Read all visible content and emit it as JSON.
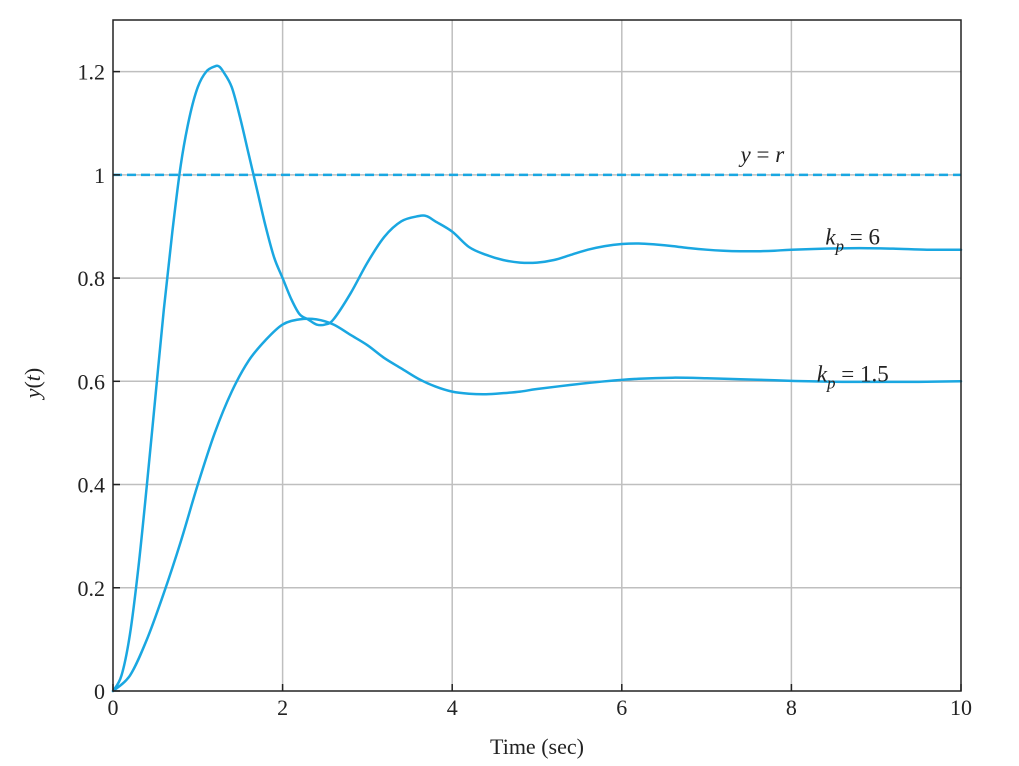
{
  "chart_data": {
    "type": "line",
    "title": "",
    "xlabel": "Time (sec)",
    "ylabel": "y(t)",
    "xlim": [
      0,
      10
    ],
    "ylim": [
      0,
      1.3
    ],
    "x_ticks": [
      0,
      2,
      4,
      6,
      8,
      10
    ],
    "x_tick_labels": [
      "0",
      "2",
      "4",
      "6",
      "8",
      "10"
    ],
    "y_ticks": [
      0,
      0.2,
      0.4,
      0.6,
      0.8,
      1,
      1.2
    ],
    "y_tick_labels": [
      "0",
      "0.2",
      "0.4",
      "0.6",
      "0.8",
      "1",
      "1.2"
    ],
    "grid": true,
    "colors": {
      "curve": "#1aa7e1",
      "grid": "#bfbfbf",
      "frame": "#222222"
    },
    "series": [
      {
        "name": "k_p = 6",
        "style": "solid",
        "x": [
          0,
          0.1,
          0.2,
          0.3,
          0.4,
          0.5,
          0.6,
          0.7,
          0.8,
          0.9,
          1.0,
          1.1,
          1.2,
          1.25,
          1.3,
          1.4,
          1.5,
          1.6,
          1.7,
          1.8,
          1.9,
          2.0,
          2.1,
          2.2,
          2.3,
          2.4,
          2.5,
          2.6,
          2.8,
          3.0,
          3.2,
          3.4,
          3.6,
          3.7,
          3.8,
          4.0,
          4.2,
          4.4,
          4.6,
          4.8,
          5.0,
          5.2,
          5.4,
          5.6,
          5.8,
          6.0,
          6.2,
          6.4,
          6.6,
          6.8,
          7.0,
          7.2,
          7.4,
          7.6,
          7.8,
          8.0,
          8.4,
          8.8,
          9.2,
          9.6,
          10.0
        ],
        "y": [
          0,
          0.03,
          0.11,
          0.24,
          0.4,
          0.57,
          0.74,
          0.89,
          1.02,
          1.11,
          1.17,
          1.2,
          1.21,
          1.21,
          1.2,
          1.17,
          1.11,
          1.04,
          0.97,
          0.9,
          0.84,
          0.8,
          0.76,
          0.73,
          0.72,
          0.71,
          0.71,
          0.72,
          0.77,
          0.83,
          0.88,
          0.91,
          0.92,
          0.92,
          0.91,
          0.89,
          0.86,
          0.845,
          0.835,
          0.83,
          0.83,
          0.835,
          0.845,
          0.855,
          0.862,
          0.866,
          0.867,
          0.865,
          0.862,
          0.858,
          0.855,
          0.853,
          0.852,
          0.852,
          0.853,
          0.855,
          0.857,
          0.858,
          0.857,
          0.855,
          0.855
        ],
        "label": {
          "k": "k",
          "sub": "p",
          "rest": " = 6",
          "x": 8.4,
          "y": 0.865
        }
      },
      {
        "name": "k_p = 1.5",
        "style": "solid",
        "x": [
          0,
          0.2,
          0.4,
          0.6,
          0.8,
          1.0,
          1.2,
          1.4,
          1.6,
          1.8,
          2.0,
          2.2,
          2.4,
          2.6,
          2.8,
          3.0,
          3.2,
          3.4,
          3.6,
          3.8,
          4.0,
          4.2,
          4.4,
          4.6,
          4.8,
          5.0,
          5.4,
          5.8,
          6.2,
          6.6,
          7.0,
          7.4,
          7.8,
          8.2,
          8.6,
          9.0,
          9.5,
          10.0
        ],
        "y": [
          0,
          0.03,
          0.1,
          0.19,
          0.29,
          0.4,
          0.5,
          0.58,
          0.64,
          0.68,
          0.71,
          0.72,
          0.72,
          0.71,
          0.69,
          0.67,
          0.645,
          0.625,
          0.605,
          0.59,
          0.58,
          0.576,
          0.575,
          0.577,
          0.58,
          0.585,
          0.593,
          0.6,
          0.605,
          0.607,
          0.606,
          0.604,
          0.602,
          0.6,
          0.599,
          0.599,
          0.599,
          0.6
        ],
        "label": {
          "k": "k",
          "sub": "p",
          "rest": " = 1.5",
          "x": 8.3,
          "y": 0.6
        }
      },
      {
        "name": "y = r",
        "style": "dashed",
        "x": [
          0,
          10
        ],
        "y": [
          1,
          1
        ],
        "label": {
          "text_left": "y",
          "text_mid": " = ",
          "text_right": "r",
          "x": 7.4,
          "y": 1.025
        }
      }
    ]
  }
}
